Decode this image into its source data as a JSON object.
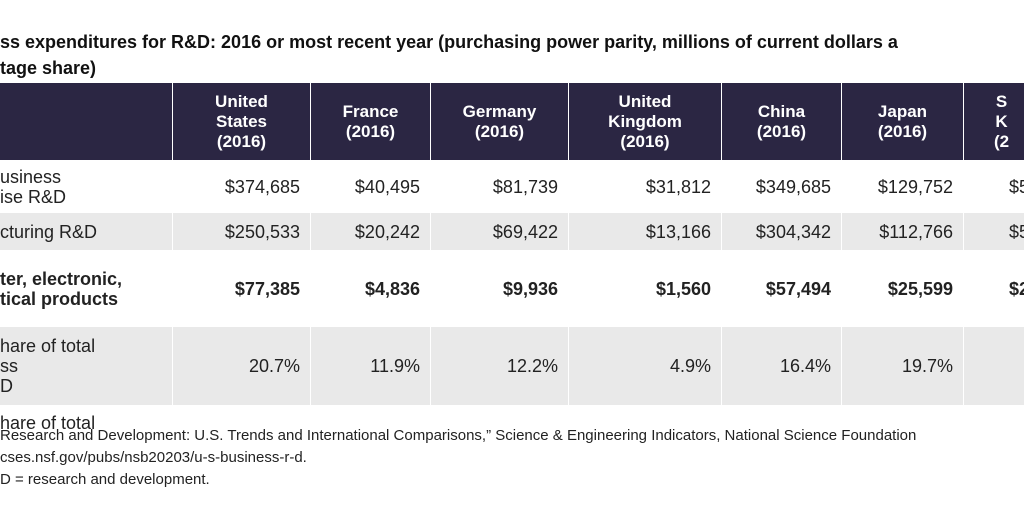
{
  "title": [
    "ss expenditures for R&D: 2016 or most recent year (purchasing power parity, millions of current dollars a",
    "tage share)"
  ],
  "table": {
    "header": [
      "",
      "United\nStates\n(2016)",
      "France\n(2016)",
      "Germany\n(2016)",
      "United\nKingdom\n(2016)",
      "China\n(2016)",
      "Japan\n(2016)",
      "S\nK\n(2"
    ],
    "rows": [
      [
        "usiness\nise R&D",
        "$374,685",
        "$40,495",
        "$81,739",
        "$31,812",
        "$349,685",
        "$129,752",
        "$5"
      ],
      [
        "cturing R&D",
        "$250,533",
        "$20,242",
        "$69,422",
        "$13,166",
        "$304,342",
        "$112,766",
        "$5"
      ],
      [
        "ter, electronic,\ntical products",
        "$77,385",
        "$4,836",
        "$9,936",
        "$1,560",
        "$57,494",
        "$25,599",
        "$2"
      ],
      [
        "hare of total\nss\nD",
        "20.7%",
        "11.9%",
        "12.2%",
        "4.9%",
        "16.4%",
        "19.7%",
        ""
      ],
      [
        "hare of total",
        "",
        "",
        "",
        "",
        "",
        "",
        ""
      ]
    ]
  },
  "footer": [
    "Research and Development: U.S. Trends and International Comparisons,” Science & Engineering Indicators, National Science Foundation",
    "cses.nsf.gov/pubs/nsb20203/u-s-business-r-d.",
    "D = research and development."
  ]
}
